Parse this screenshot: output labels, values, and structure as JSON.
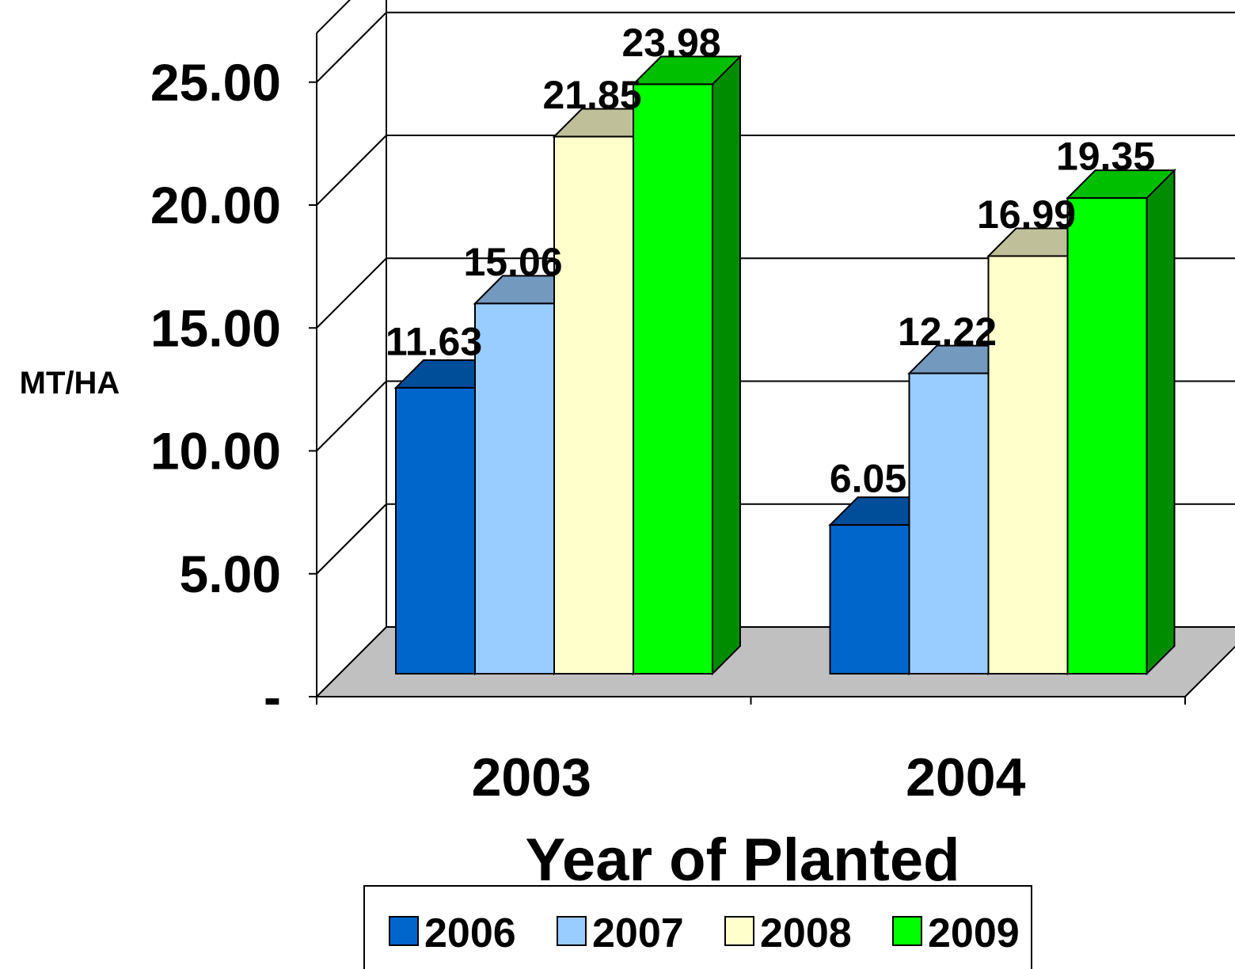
{
  "chart_data": {
    "type": "bar",
    "style": "3d-clustered-column",
    "categories": [
      "2003",
      "2004"
    ],
    "series": [
      {
        "name": "2006",
        "values": [
          11.63,
          6.05
        ],
        "color": "#0066CC"
      },
      {
        "name": "2007",
        "values": [
          15.06,
          12.22
        ],
        "color": "#99CCFF"
      },
      {
        "name": "2008",
        "values": [
          21.85,
          16.99
        ],
        "color": "#FFFFCC"
      },
      {
        "name": "2009",
        "values": [
          23.98,
          19.35
        ],
        "color": "#00FF00"
      }
    ],
    "value_labels": [
      [
        "11.63",
        "6.05"
      ],
      [
        "15.06",
        "12.22"
      ],
      [
        "21.85",
        "16.99"
      ],
      [
        "23.98",
        "19.35"
      ]
    ],
    "xlabel": "Year of Planted",
    "ylabel": "MT/HA",
    "ylim": [
      0,
      25
    ],
    "y_ticks": [
      0,
      5,
      10,
      15,
      20,
      25
    ],
    "y_tick_labels": [
      "-",
      "5.00",
      "10.00",
      "15.00",
      "20.00",
      "25.00"
    ],
    "grid": true,
    "floor_color": "#C0C0C0",
    "legend": {
      "position": "bottom",
      "entries": [
        "2006",
        "2007",
        "2008",
        "2009"
      ]
    }
  }
}
